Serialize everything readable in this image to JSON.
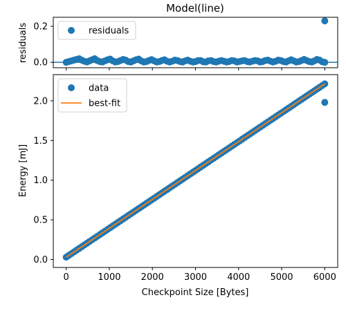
{
  "chart_data": [
    {
      "panel": "residuals",
      "type": "scatter",
      "title": "Model(line)",
      "xlabel": "",
      "ylabel": "residuals",
      "xlim": [
        -300,
        6300
      ],
      "ylim": [
        -0.03,
        0.25
      ],
      "yticks": [
        0.0,
        0.2
      ],
      "ytick_labels": [
        "0.0",
        "0.2"
      ],
      "xticks": [
        0,
        1000,
        2000,
        3000,
        4000,
        5000,
        6000
      ],
      "show_xtick_labels": false,
      "zero_line": true,
      "legend": {
        "placement": "top-left",
        "entries": [
          {
            "name": "residuals",
            "marker": "circle",
            "color": "#1f77b4"
          }
        ]
      },
      "series": [
        {
          "name": "residuals",
          "color": "#1f77b4",
          "x_start": 0,
          "x_end": 5940,
          "x_step": 60,
          "values": [
            0.0,
            0.004,
            0.008,
            0.012,
            0.016,
            0.02,
            0.012,
            0.006,
            0.002,
            0.008,
            0.014,
            0.02,
            0.01,
            0.004,
            0.002,
            0.008,
            0.014,
            0.018,
            0.008,
            0.002,
            0.004,
            0.01,
            0.016,
            0.012,
            0.004,
            0.002,
            0.008,
            0.014,
            0.018,
            0.008,
            0.002,
            0.004,
            0.01,
            0.015,
            0.008,
            0.002,
            0.004,
            0.01,
            0.014,
            0.006,
            0.002,
            0.006,
            0.012,
            0.01,
            0.004,
            0.002,
            0.008,
            0.012,
            0.006,
            0.002,
            0.004,
            0.01,
            0.01,
            0.003,
            0.002,
            0.008,
            0.01,
            0.004,
            0.002,
            0.006,
            0.01,
            0.006,
            0.002,
            0.004,
            0.01,
            0.008,
            0.002,
            0.004,
            0.008,
            0.01,
            0.004,
            0.002,
            0.006,
            0.01,
            0.008,
            0.002,
            0.004,
            0.01,
            0.012,
            0.006,
            0.002,
            0.006,
            0.012,
            0.01,
            0.004,
            0.002,
            0.008,
            0.014,
            0.008,
            0.002,
            0.004,
            0.01,
            0.016,
            0.01,
            0.004,
            0.002,
            0.008,
            0.016,
            0.012,
            0.003
          ],
          "outliers": [
            {
              "x": 6000,
              "y": 0.23
            },
            {
              "x": 6000,
              "y": 0.0
            }
          ]
        }
      ]
    },
    {
      "panel": "main",
      "type": "scatter",
      "title": "",
      "xlabel": "Checkpoint Size [Bytes]",
      "ylabel": "Energy [mJ]",
      "xlim": [
        -300,
        6300
      ],
      "ylim": [
        -0.1,
        2.33
      ],
      "xticks": [
        0,
        1000,
        2000,
        3000,
        4000,
        5000,
        6000
      ],
      "xtick_labels": [
        "0",
        "1000",
        "2000",
        "3000",
        "4000",
        "5000",
        "6000"
      ],
      "yticks": [
        0.0,
        0.5,
        1.0,
        1.5,
        2.0
      ],
      "ytick_labels": [
        "0.0",
        "0.5",
        "1.0",
        "1.5",
        "2.0"
      ],
      "legend": {
        "placement": "top-left",
        "entries": [
          {
            "name": "data",
            "marker": "circle",
            "color": "#1f77b4"
          },
          {
            "name": "best-fit",
            "marker": "line",
            "color": "#ff7f0e"
          }
        ]
      },
      "series": [
        {
          "name": "data",
          "color": "#1f77b4",
          "x_start": 0,
          "x_end": 6000,
          "x_step": 60,
          "slope": 0.000364,
          "intercept": 0.03,
          "outliers": [
            {
              "x": 6000,
              "y": 1.98
            }
          ]
        },
        {
          "name": "best-fit",
          "color": "#ff7f0e",
          "line": {
            "x": [
              0,
              6000
            ],
            "y": [
              0.03,
              2.214
            ]
          }
        }
      ]
    }
  ]
}
